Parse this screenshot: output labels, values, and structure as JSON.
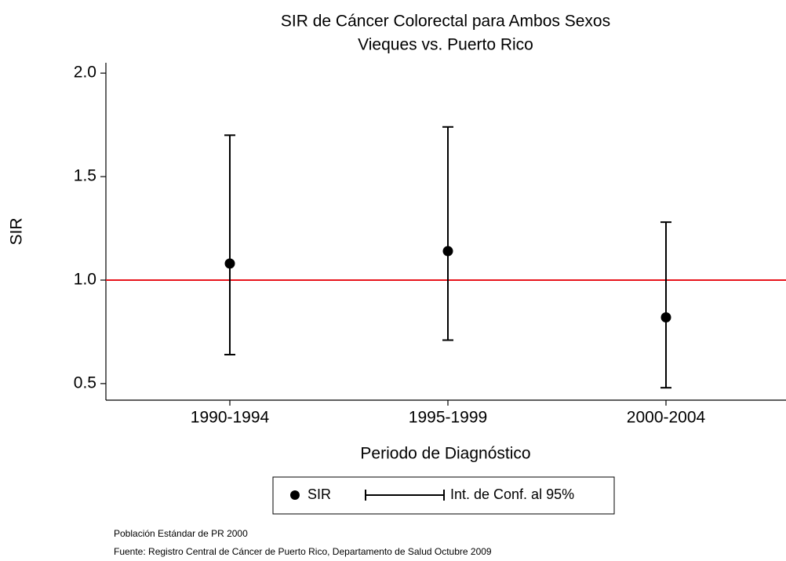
{
  "chart_data": {
    "type": "errorbar",
    "title": "SIR de Cáncer Colorectal para Ambos Sexos",
    "subtitle": "Vieques vs. Puerto Rico",
    "x_label": "Periodo de Diagnóstico",
    "y_label": "SIR",
    "categories": [
      "1990-1994",
      "1995-1999",
      "2000-2004"
    ],
    "series": [
      {
        "name": "SIR",
        "color": "#000000",
        "values": [
          1.08,
          1.14,
          0.82
        ],
        "lower": [
          0.64,
          0.71,
          0.48
        ],
        "upper": [
          1.7,
          1.74,
          1.28
        ]
      }
    ],
    "ci_label": "Int. de Conf. al 95%",
    "reference_line": {
      "value": 1,
      "color": "#e8141c"
    },
    "ylim": [
      0.42,
      2.05
    ],
    "yticks": [
      0.5,
      {
        "value": 1,
        "label": "1.0"
      },
      1.5,
      {
        "value": 2,
        "label": "2.0"
      }
    ],
    "notes": [
      "Población Estándar de PR 2000",
      "Fuente: Registro Central de Cáncer de Puerto Rico, Departamento de Salud Octubre 2009"
    ]
  }
}
